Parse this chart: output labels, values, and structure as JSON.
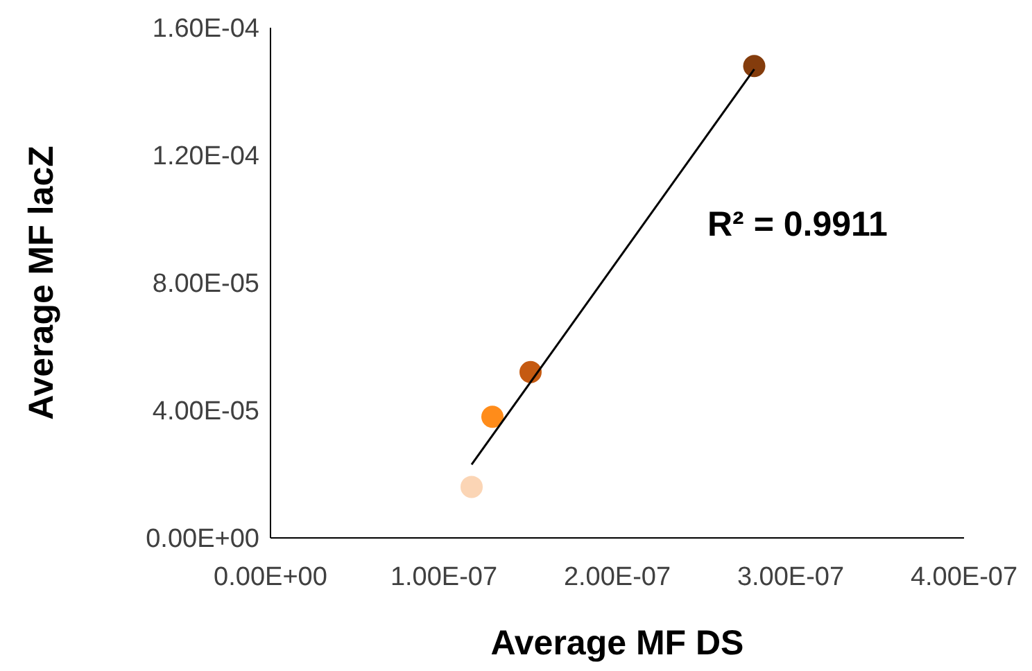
{
  "chart_data": {
    "type": "scatter",
    "xlabel": "Average MF DS",
    "ylabel": "Average MF lacZ",
    "xlim": [
      0,
      4e-07
    ],
    "xticks": [
      {
        "value": 0,
        "label": "0.00E+00"
      },
      {
        "value": 1e-07,
        "label": "1.00E-07"
      },
      {
        "value": 2e-07,
        "label": "2.00E-07"
      },
      {
        "value": 3e-07,
        "label": "3.00E-07"
      },
      {
        "value": 4e-07,
        "label": "4.00E-07"
      }
    ],
    "ylim": [
      0,
      0.00016
    ],
    "yticks": [
      {
        "value": 0,
        "label": "0.00E+00"
      },
      {
        "value": 4e-05,
        "label": "4.00E-05"
      },
      {
        "value": 8e-05,
        "label": "8.00E-05"
      },
      {
        "value": 0.00012,
        "label": "1.20E-04"
      },
      {
        "value": 0.00016,
        "label": "1.60E-04"
      }
    ],
    "grid": false,
    "series": [
      {
        "marker": "circle",
        "x": [
          1.16e-07,
          1.28e-07,
          1.5e-07,
          2.79e-07
        ],
        "values": [
          1.6e-05,
          3.8e-05,
          5.2e-05,
          0.000148
        ],
        "colors": [
          "#fbd5b5",
          "#ff8c1a",
          "#c55a11",
          "#843c0c"
        ]
      },
      {
        "type": "line",
        "x": [
          1.16e-07,
          2.79e-07
        ],
        "values": [
          2.3e-05,
          0.000147
        ],
        "color": "#000000",
        "line_style": "solid"
      }
    ],
    "annotations": [
      {
        "text": "R² = 0.9911"
      }
    ]
  }
}
